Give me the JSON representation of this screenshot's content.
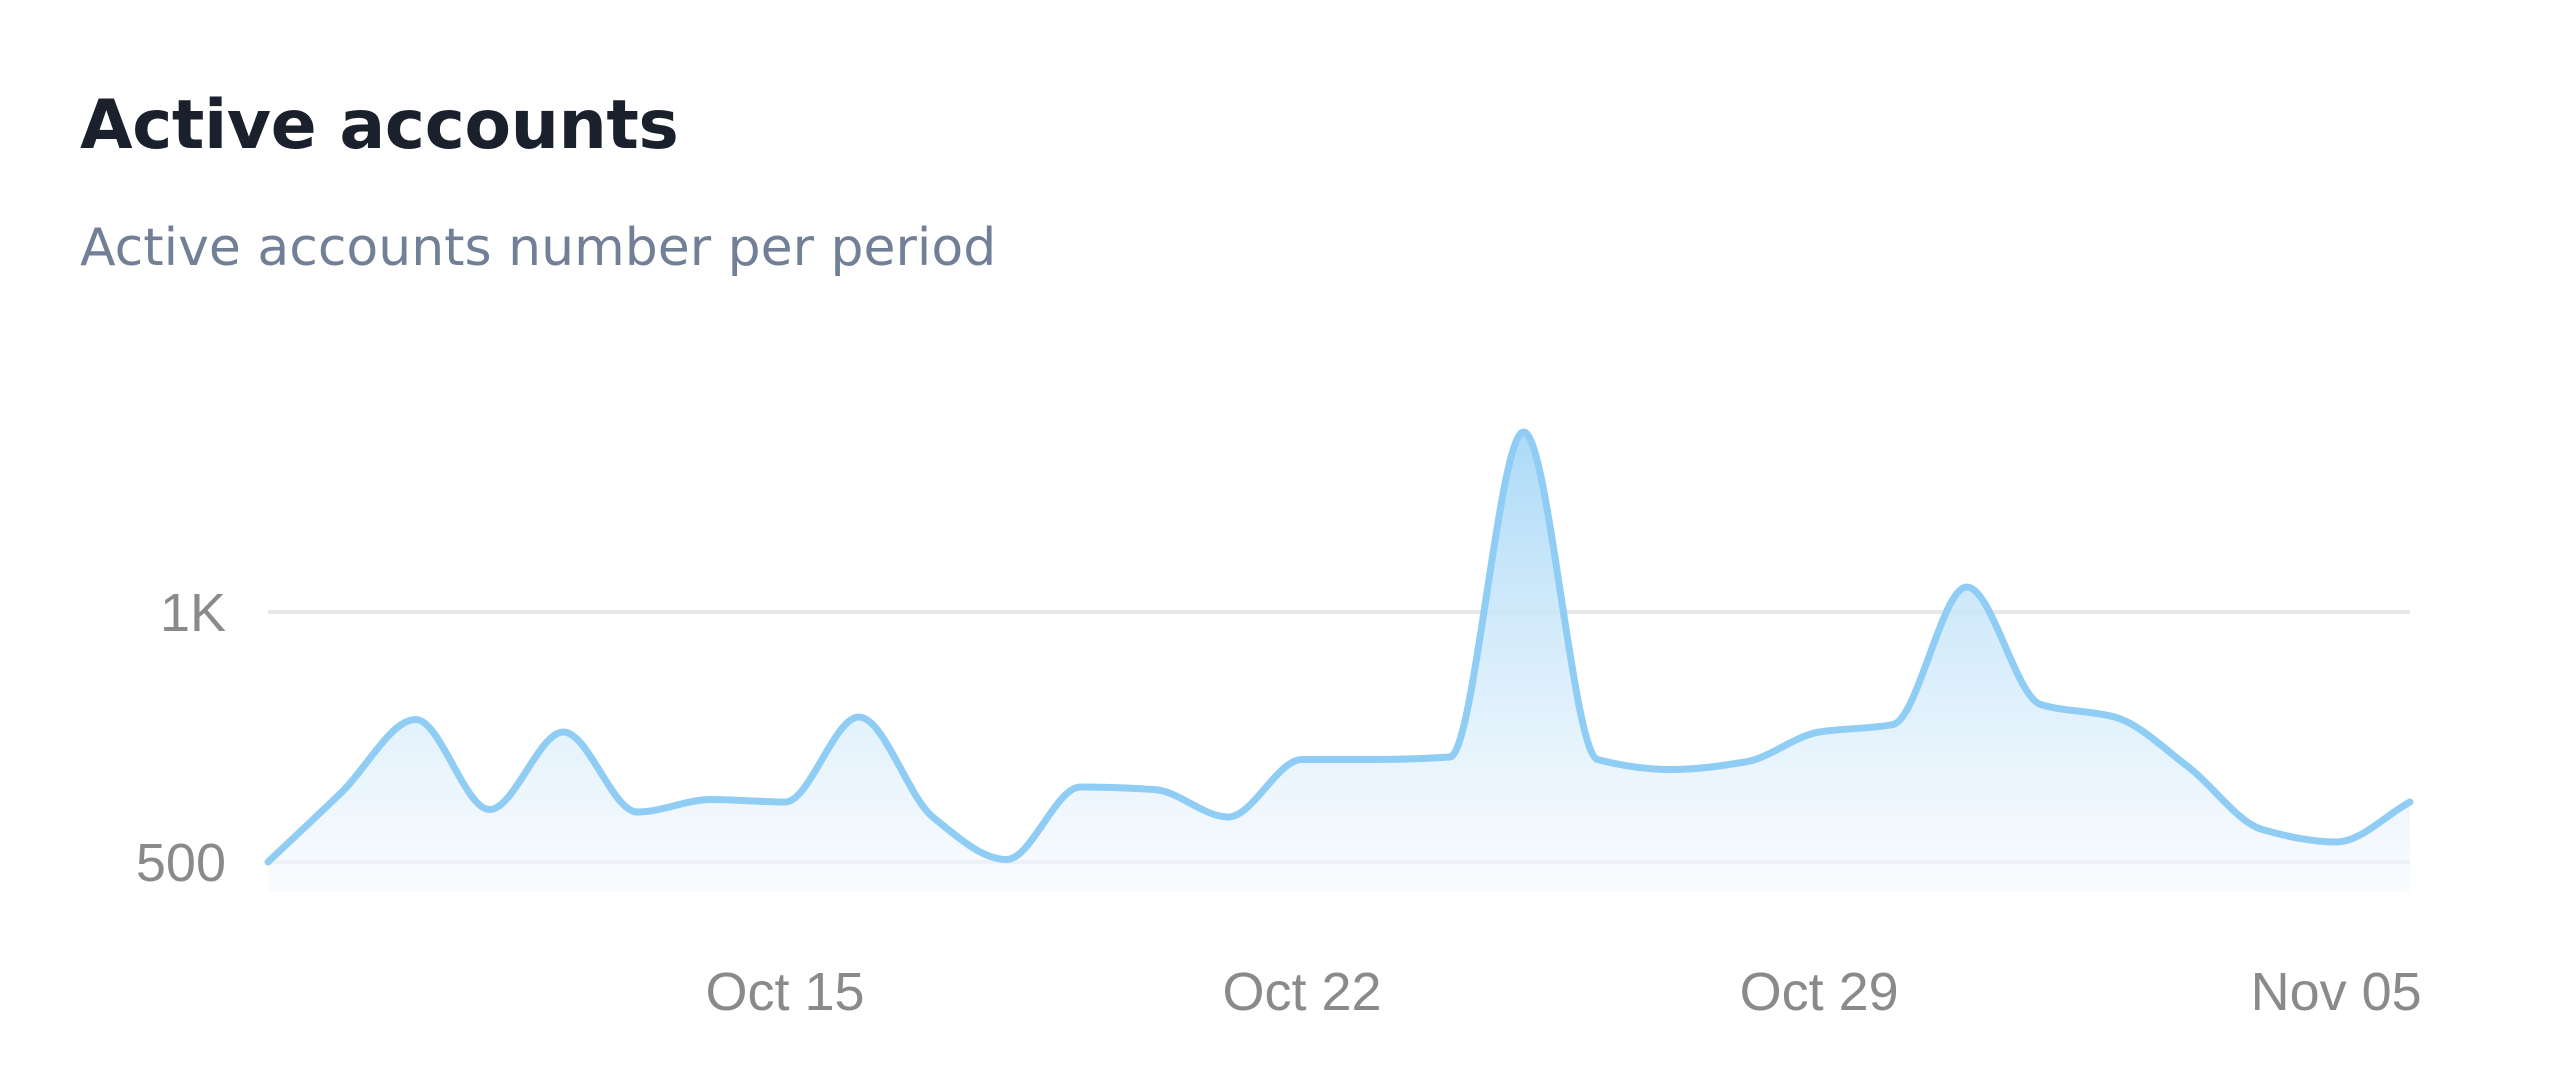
{
  "card": {
    "title": "Active accounts",
    "subtitle": "Active accounts number per period"
  },
  "colors": {
    "title": "#1a202c",
    "subtitle": "#718096",
    "tick_label": "#8a8a8a",
    "grid": "#e8e8ea",
    "line": "#90cdf4",
    "area_top": "#a7d8f7",
    "area_bottom": "#f5f9fd"
  },
  "chart_data": {
    "type": "area",
    "title": "Active accounts",
    "subtitle": "Active accounts number per period",
    "xlabel": "",
    "ylabel": "",
    "x_start": "Oct 08",
    "x": [
      "Oct 08",
      "Oct 09",
      "Oct 10",
      "Oct 11",
      "Oct 12",
      "Oct 13",
      "Oct 14",
      "Oct 15",
      "Oct 16",
      "Oct 17",
      "Oct 18",
      "Oct 19",
      "Oct 20",
      "Oct 21",
      "Oct 22",
      "Oct 23",
      "Oct 24",
      "Oct 25",
      "Oct 26",
      "Oct 27",
      "Oct 28",
      "Oct 29",
      "Oct 30",
      "Oct 31",
      "Nov 01",
      "Nov 02",
      "Nov 03",
      "Nov 04",
      "Nov 05",
      "Nov 06"
    ],
    "series": [
      {
        "values": [
          500,
          640,
          785,
          605,
          760,
          600,
          625,
          620,
          790,
          590,
          505,
          650,
          645,
          590,
          705,
          705,
          710,
          1360,
          705,
          685,
          700,
          760,
          775,
          1050,
          815,
          790,
          690,
          565,
          540,
          620
        ]
      }
    ],
    "ylim": [
      440,
      1420
    ],
    "y_ticks": [
      {
        "value": 500,
        "label": "500"
      },
      {
        "value": 1000,
        "label": "1K"
      }
    ],
    "x_ticks": [
      {
        "index": 7,
        "label": "Oct 15"
      },
      {
        "index": 14,
        "label": "Oct 22"
      },
      {
        "index": 21,
        "label": "Oct 29"
      },
      {
        "index": 28,
        "label": "Nov 05"
      }
    ],
    "grid": true,
    "legend": "none"
  }
}
